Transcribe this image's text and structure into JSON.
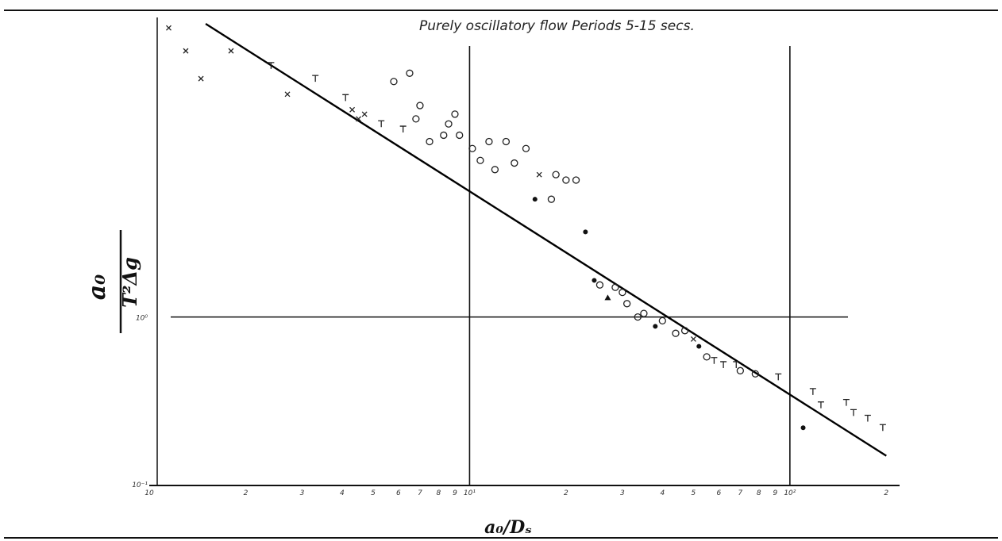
{
  "chart_data": {
    "type": "scatter",
    "title": "Purely oscillatory flow Periods 5-15 secs.",
    "xlabel": "a0/Ds",
    "ylabel": "a0 / T²Δg",
    "x_scale": "log",
    "y_scale": "log",
    "xlim": [
      1,
      220
    ],
    "ylim": [
      0.1,
      60
    ],
    "grid": false,
    "reference_lines": {
      "x": [
        10,
        100
      ],
      "y": [
        1
      ]
    },
    "x_ticks": [
      "10",
      "2",
      "3",
      "4",
      "5",
      "6",
      "7",
      "8",
      "9",
      "10¹",
      "2",
      "3",
      "4",
      "5",
      "6",
      "7",
      "8",
      "9",
      "10²",
      "2",
      "3"
    ],
    "y_ticks": [
      "10⁻¹",
      "10⁰"
    ],
    "fit_line": {
      "x": [
        1.5,
        200
      ],
      "y": [
        55,
        0.15
      ]
    },
    "points": [
      {
        "x": 1.15,
        "y": 52,
        "m": "cross"
      },
      {
        "x": 1.3,
        "y": 38,
        "m": "cross"
      },
      {
        "x": 1.45,
        "y": 26,
        "m": "cross"
      },
      {
        "x": 1.8,
        "y": 38,
        "m": "cross"
      },
      {
        "x": 2.4,
        "y": 31,
        "m": "tee"
      },
      {
        "x": 2.7,
        "y": 21,
        "m": "cross"
      },
      {
        "x": 3.3,
        "y": 26,
        "m": "tee"
      },
      {
        "x": 4.1,
        "y": 20,
        "m": "tee"
      },
      {
        "x": 4.3,
        "y": 17,
        "m": "cross"
      },
      {
        "x": 4.5,
        "y": 15,
        "m": "cross"
      },
      {
        "x": 4.7,
        "y": 16,
        "m": "cross"
      },
      {
        "x": 5.3,
        "y": 14,
        "m": "tee"
      },
      {
        "x": 5.8,
        "y": 25,
        "m": "circle"
      },
      {
        "x": 6.2,
        "y": 13,
        "m": "tee"
      },
      {
        "x": 6.5,
        "y": 28,
        "m": "circle"
      },
      {
        "x": 6.8,
        "y": 15,
        "m": "circle"
      },
      {
        "x": 7.0,
        "y": 18,
        "m": "circle"
      },
      {
        "x": 7.5,
        "y": 11,
        "m": "circle"
      },
      {
        "x": 8.3,
        "y": 12,
        "m": "circle"
      },
      {
        "x": 8.6,
        "y": 14,
        "m": "circle"
      },
      {
        "x": 9.0,
        "y": 16,
        "m": "circle"
      },
      {
        "x": 9.3,
        "y": 12,
        "m": "circle"
      },
      {
        "x": 10.2,
        "y": 10,
        "m": "circle"
      },
      {
        "x": 10.8,
        "y": 8.5,
        "m": "circle"
      },
      {
        "x": 11.5,
        "y": 11,
        "m": "circle"
      },
      {
        "x": 12.0,
        "y": 7.5,
        "m": "circle"
      },
      {
        "x": 13.0,
        "y": 11,
        "m": "circle"
      },
      {
        "x": 13.8,
        "y": 8.2,
        "m": "circle"
      },
      {
        "x": 15.0,
        "y": 10,
        "m": "circle"
      },
      {
        "x": 16.0,
        "y": 5,
        "m": "dot"
      },
      {
        "x": 16.5,
        "y": 7,
        "m": "cross"
      },
      {
        "x": 18.0,
        "y": 5,
        "m": "circle"
      },
      {
        "x": 18.6,
        "y": 7,
        "m": "circle"
      },
      {
        "x": 20.0,
        "y": 6.5,
        "m": "circle"
      },
      {
        "x": 21.5,
        "y": 6.5,
        "m": "circle"
      },
      {
        "x": 23.0,
        "y": 3.2,
        "m": "dot"
      },
      {
        "x": 24.5,
        "y": 1.65,
        "m": "dot"
      },
      {
        "x": 25.5,
        "y": 1.55,
        "m": "circle"
      },
      {
        "x": 27.0,
        "y": 1.3,
        "m": "triangle"
      },
      {
        "x": 28.5,
        "y": 1.5,
        "m": "circle"
      },
      {
        "x": 30.0,
        "y": 1.4,
        "m": "circle"
      },
      {
        "x": 31.0,
        "y": 1.2,
        "m": "circle"
      },
      {
        "x": 33.5,
        "y": 1.0,
        "m": "circle"
      },
      {
        "x": 35.0,
        "y": 1.05,
        "m": "circle"
      },
      {
        "x": 38.0,
        "y": 0.88,
        "m": "dot"
      },
      {
        "x": 40.0,
        "y": 0.95,
        "m": "circle"
      },
      {
        "x": 44.0,
        "y": 0.8,
        "m": "circle"
      },
      {
        "x": 47.0,
        "y": 0.83,
        "m": "circle"
      },
      {
        "x": 50.0,
        "y": 0.74,
        "m": "cross"
      },
      {
        "x": 52.0,
        "y": 0.67,
        "m": "dot"
      },
      {
        "x": 55.0,
        "y": 0.58,
        "m": "circle"
      },
      {
        "x": 58.0,
        "y": 0.55,
        "m": "tee"
      },
      {
        "x": 62.0,
        "y": 0.52,
        "m": "tee"
      },
      {
        "x": 68.0,
        "y": 0.52,
        "m": "tee"
      },
      {
        "x": 70.0,
        "y": 0.48,
        "m": "circle"
      },
      {
        "x": 78.0,
        "y": 0.46,
        "m": "circle"
      },
      {
        "x": 92.0,
        "y": 0.44,
        "m": "tee"
      },
      {
        "x": 118.0,
        "y": 0.36,
        "m": "tee"
      },
      {
        "x": 125.0,
        "y": 0.3,
        "m": "tee"
      },
      {
        "x": 110.0,
        "y": 0.22,
        "m": "dot"
      },
      {
        "x": 150.0,
        "y": 0.31,
        "m": "tee"
      },
      {
        "x": 158.0,
        "y": 0.27,
        "m": "tee"
      },
      {
        "x": 175.0,
        "y": 0.25,
        "m": "tee"
      },
      {
        "x": 195.0,
        "y": 0.22,
        "m": "tee"
      }
    ]
  }
}
